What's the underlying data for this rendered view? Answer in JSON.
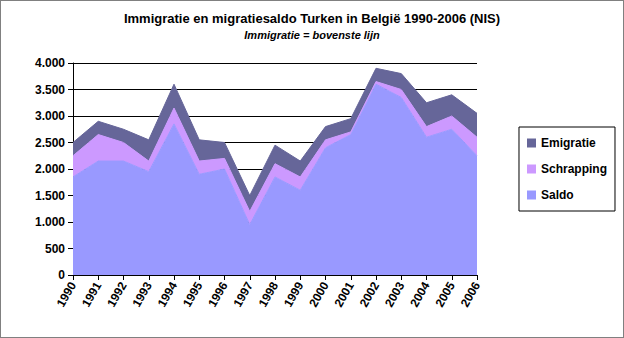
{
  "chart_data": {
    "type": "area",
    "title": "Immigratie en migratiesaldo Turken in België 1990-2006 (NIS)",
    "subtitle": "Immigratie = bovenste lijn",
    "categories": [
      "1990",
      "1991",
      "1992",
      "1993",
      "1994",
      "1995",
      "1996",
      "1997",
      "1998",
      "1999",
      "2000",
      "2001",
      "2002",
      "2003",
      "2004",
      "2005",
      "2006"
    ],
    "series": [
      {
        "name": "Saldo",
        "color": "#9999ff",
        "values": [
          1850,
          2150,
          2150,
          1950,
          2850,
          1900,
          2000,
          950,
          1850,
          1600,
          2400,
          2650,
          3600,
          3350,
          2600,
          2750,
          2250
        ]
      },
      {
        "name": "Schrapping",
        "color": "#cc99ff",
        "values": [
          400,
          500,
          350,
          200,
          300,
          250,
          200,
          250,
          250,
          250,
          150,
          50,
          50,
          150,
          200,
          250,
          350
        ]
      },
      {
        "name": "Emigratie",
        "color": "#666699",
        "values": [
          250,
          250,
          250,
          400,
          450,
          400,
          300,
          300,
          350,
          300,
          250,
          250,
          250,
          300,
          450,
          400,
          450
        ]
      }
    ],
    "stacked": true,
    "ylim": [
      0,
      4000
    ],
    "yticks": [
      0,
      500,
      {
        "value": 1000,
        "label": "1.000"
      },
      {
        "value": 1500,
        "label": "1.500"
      },
      {
        "value": 2000,
        "label": "2.000"
      },
      {
        "value": 2500,
        "label": "2.500"
      },
      {
        "value": 3000,
        "label": "3.000"
      },
      {
        "value": 3500,
        "label": "3.500"
      },
      {
        "value": 4000,
        "label": "4.000"
      }
    ],
    "grid": true,
    "legend": "right"
  }
}
